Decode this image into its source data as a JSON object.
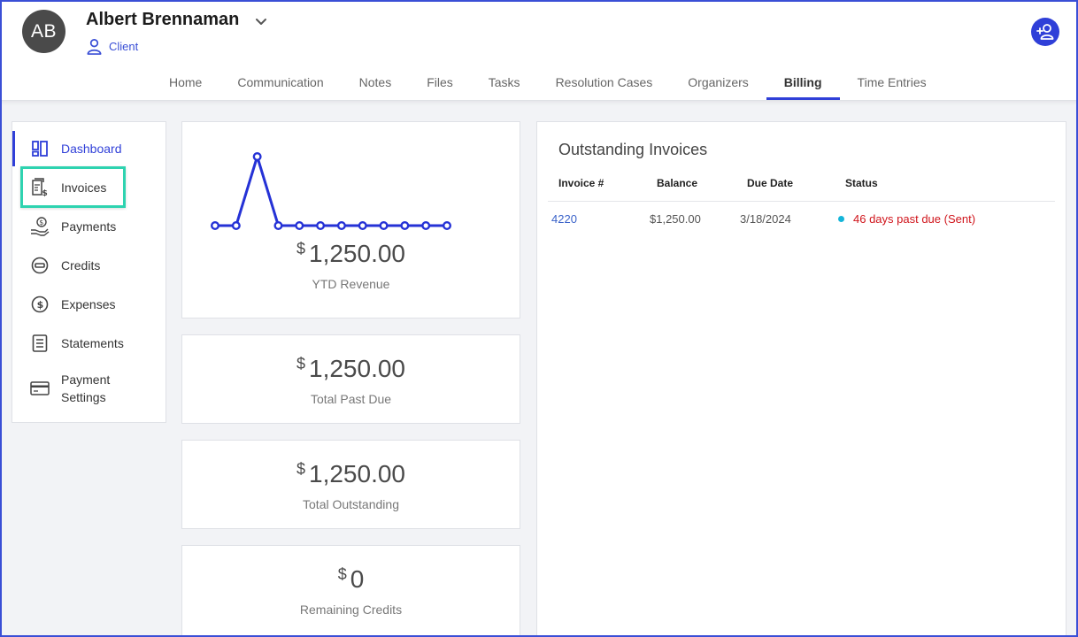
{
  "client": {
    "initials": "AB",
    "name": "Albert Brennaman",
    "type": "Client"
  },
  "tabs": [
    {
      "label": "Home"
    },
    {
      "label": "Communication"
    },
    {
      "label": "Notes"
    },
    {
      "label": "Files"
    },
    {
      "label": "Tasks"
    },
    {
      "label": "Resolution Cases"
    },
    {
      "label": "Organizers"
    },
    {
      "label": "Billing",
      "active": true
    },
    {
      "label": "Time Entries"
    }
  ],
  "sidebar": {
    "items": [
      {
        "label": "Dashboard",
        "icon": "dashboard-icon",
        "active": true
      },
      {
        "label": "Invoices",
        "icon": "invoice-icon"
      },
      {
        "label": "Payments",
        "icon": "payment-hand-icon"
      },
      {
        "label": "Credits",
        "icon": "credit-icon"
      },
      {
        "label": "Expenses",
        "icon": "dollar-circle-icon"
      },
      {
        "label": "Statements",
        "icon": "statement-icon"
      },
      {
        "label": "Payment",
        "label2": "Settings",
        "icon": "credit-card-icon"
      }
    ]
  },
  "stats": {
    "currency": "$",
    "ytd_revenue": {
      "amount": "1,250.00",
      "label": "YTD Revenue"
    },
    "total_past_due": {
      "amount": "1,250.00",
      "label": "Total Past Due"
    },
    "total_outstanding": {
      "amount": "1,250.00",
      "label": "Total Outstanding"
    },
    "remaining_credits": {
      "amount": "0",
      "label": "Remaining Credits"
    }
  },
  "chart_data": {
    "type": "line",
    "x": [
      1,
      2,
      3,
      4,
      5,
      6,
      7,
      8,
      9,
      10,
      11,
      12
    ],
    "series": [
      {
        "values": [
          0,
          0,
          1250,
          0,
          0,
          0,
          0,
          0,
          0,
          0,
          0,
          0
        ]
      }
    ],
    "ylim": [
      0,
      1250
    ],
    "grid": false,
    "color": "#2532d6"
  },
  "outstanding": {
    "title": "Outstanding Invoices",
    "headers": {
      "invoice": "Invoice #",
      "balance": "Balance",
      "due": "Due Date",
      "status": "Status"
    },
    "rows": [
      {
        "invoice": "4220",
        "balance": "$1,250.00",
        "due": "3/18/2024",
        "status": "46 days past due (Sent)"
      }
    ]
  },
  "colors": {
    "accent": "#2f3fd8",
    "highlight": "#2ed3b0",
    "status_text": "#d0151c",
    "status_dot": "#14b5d9"
  }
}
